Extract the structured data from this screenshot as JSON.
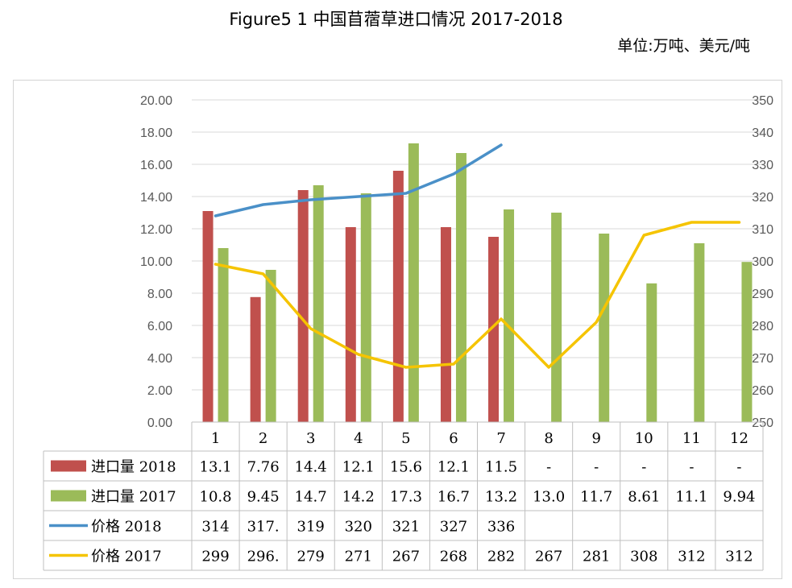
{
  "title": "Figure5 1 中国苜蓿草进口情况 2017-2018",
  "unit_label": "单位:万吨、美元/吨",
  "chart_data": {
    "type": "bar-line-combo",
    "categories": [
      "1",
      "2",
      "3",
      "4",
      "5",
      "6",
      "7",
      "8",
      "9",
      "10",
      "11",
      "12"
    ],
    "y_left": {
      "min": 0,
      "max": 20,
      "step": 2,
      "ticks": [
        "0.00",
        "2.00",
        "4.00",
        "6.00",
        "8.00",
        "10.00",
        "12.00",
        "14.00",
        "16.00",
        "18.00",
        "20.00"
      ]
    },
    "y_right": {
      "min": 250,
      "max": 350,
      "step": 10,
      "ticks": [
        "250",
        "260",
        "270",
        "280",
        "290",
        "300",
        "310",
        "320",
        "330",
        "340",
        "350"
      ]
    },
    "series": [
      {
        "name": "进口量 2018",
        "label_text": "进口量",
        "label_year": "2018",
        "kind": "bar",
        "axis": "left",
        "color": "#c0504d",
        "values": [
          13.1,
          7.76,
          14.4,
          12.1,
          15.6,
          12.1,
          11.5,
          null,
          null,
          null,
          null,
          null
        ],
        "table": [
          "13.1",
          "7.76",
          "14.4",
          "12.1",
          "15.6",
          "12.1",
          "11.5",
          "-",
          "-",
          "-",
          "-",
          "-"
        ]
      },
      {
        "name": "进口量 2017",
        "label_text": "进口量",
        "label_year": "2017",
        "kind": "bar",
        "axis": "left",
        "color": "#9bbb59",
        "values": [
          10.8,
          9.45,
          14.7,
          14.2,
          17.3,
          16.7,
          13.2,
          13.0,
          11.7,
          8.61,
          11.1,
          9.94
        ],
        "table": [
          "10.8",
          "9.45",
          "14.7",
          "14.2",
          "17.3",
          "16.7",
          "13.2",
          "13.0",
          "11.7",
          "8.61",
          "11.1",
          "9.94"
        ]
      },
      {
        "name": "价格 2018",
        "label_text": "价格",
        "label_year": "2018",
        "kind": "line",
        "axis": "right",
        "color": "#4a90c8",
        "values": [
          314,
          317.5,
          319,
          320,
          321,
          327,
          336,
          null,
          null,
          null,
          null,
          null
        ],
        "table": [
          "314",
          "317.",
          "319",
          "320",
          "321",
          "327",
          "336",
          "",
          "",
          "",
          "",
          ""
        ]
      },
      {
        "name": "价格 2017",
        "label_text": "价格",
        "label_year": "2017",
        "kind": "line",
        "axis": "right",
        "color": "#f5c400",
        "values": [
          299,
          296,
          279,
          271,
          267,
          268,
          282,
          267,
          281,
          308,
          312,
          312
        ],
        "table": [
          "299",
          "296.",
          "279",
          "271",
          "267",
          "268",
          "282",
          "267",
          "281",
          "308",
          "312",
          "312"
        ]
      }
    ]
  }
}
